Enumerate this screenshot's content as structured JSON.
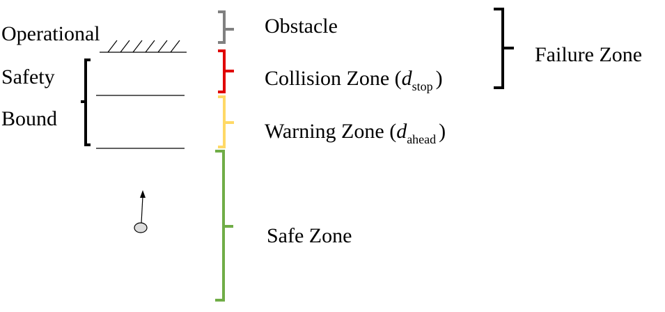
{
  "operational_safety_bound": [
    "Operational",
    "Safety",
    "Bound"
  ],
  "zones": [
    {
      "label": "Obstacle"
    },
    {
      "label": "Collision Zone (",
      "symbol": "d",
      "subscript": "stop",
      "close": ")"
    },
    {
      "label": "Warning Zone (",
      "symbol": "d",
      "subscript": "ahead",
      "close": ")"
    },
    {
      "label": "Safe Zone"
    }
  ],
  "failure_zone": "Failure Zone"
}
